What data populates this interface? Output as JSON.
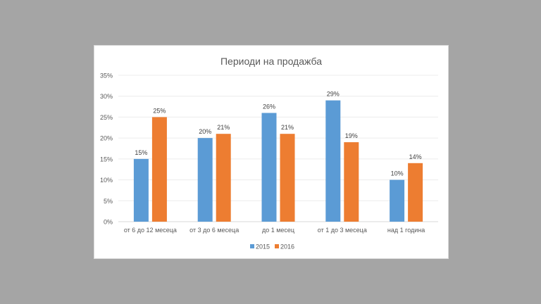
{
  "chart_data": {
    "type": "bar",
    "title": "Периоди на продажба",
    "categories": [
      "от 6 до 12 месеца",
      "от 3 до 6 месеца",
      "до 1 месец",
      "от 1 до 3 месеца",
      "над 1 година"
    ],
    "series": [
      {
        "name": "2015",
        "color": "#5b9bd5",
        "values": [
          15,
          20,
          26,
          29,
          10
        ],
        "labels": [
          "15%",
          "20%",
          "26%",
          "29%",
          "10%"
        ]
      },
      {
        "name": "2016",
        "color": "#ed7d31",
        "values": [
          25,
          21,
          21,
          19,
          14
        ],
        "labels": [
          "25%",
          "21%",
          "21%",
          "19%",
          "14%"
        ]
      }
    ],
    "ylim": [
      0,
      35
    ],
    "yticks": [
      "0%",
      "5%",
      "10%",
      "15%",
      "20%",
      "25%",
      "30%",
      "35%"
    ],
    "grid": true,
    "legend": "bottom"
  }
}
